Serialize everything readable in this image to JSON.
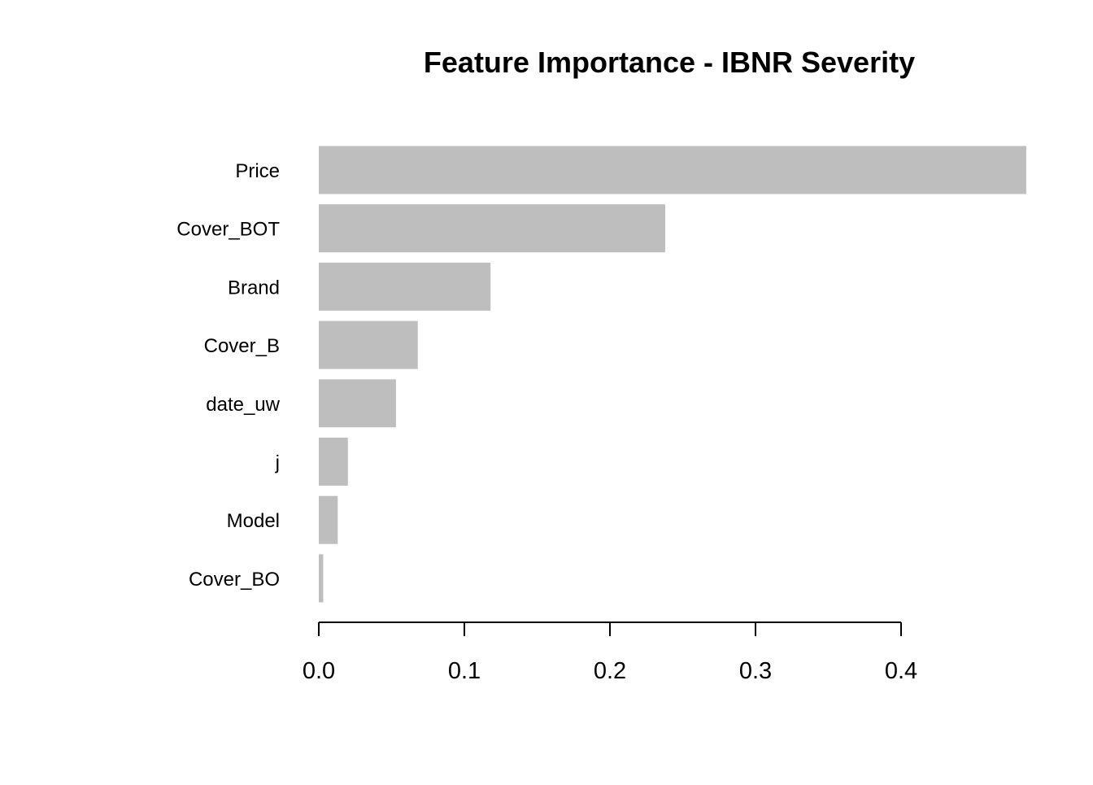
{
  "chart_data": {
    "type": "bar",
    "orientation": "horizontal",
    "title": "Feature Importance - IBNR Severity",
    "xlabel": "",
    "ylabel": "",
    "categories": [
      "Price",
      "Cover_BOT",
      "Brand",
      "Cover_B",
      "date_uw",
      "j",
      "Model",
      "Cover_BO"
    ],
    "values": [
      0.486,
      0.238,
      0.118,
      0.068,
      0.053,
      0.02,
      0.013,
      0.003
    ],
    "xlim": [
      0,
      0.486
    ],
    "xticks": [
      0.0,
      0.1,
      0.2,
      0.3,
      0.4
    ],
    "xtick_labels": [
      "0.0",
      "0.1",
      "0.2",
      "0.3",
      "0.4"
    ],
    "grid": false,
    "legend": "none",
    "bar_color": "#bebebe"
  }
}
